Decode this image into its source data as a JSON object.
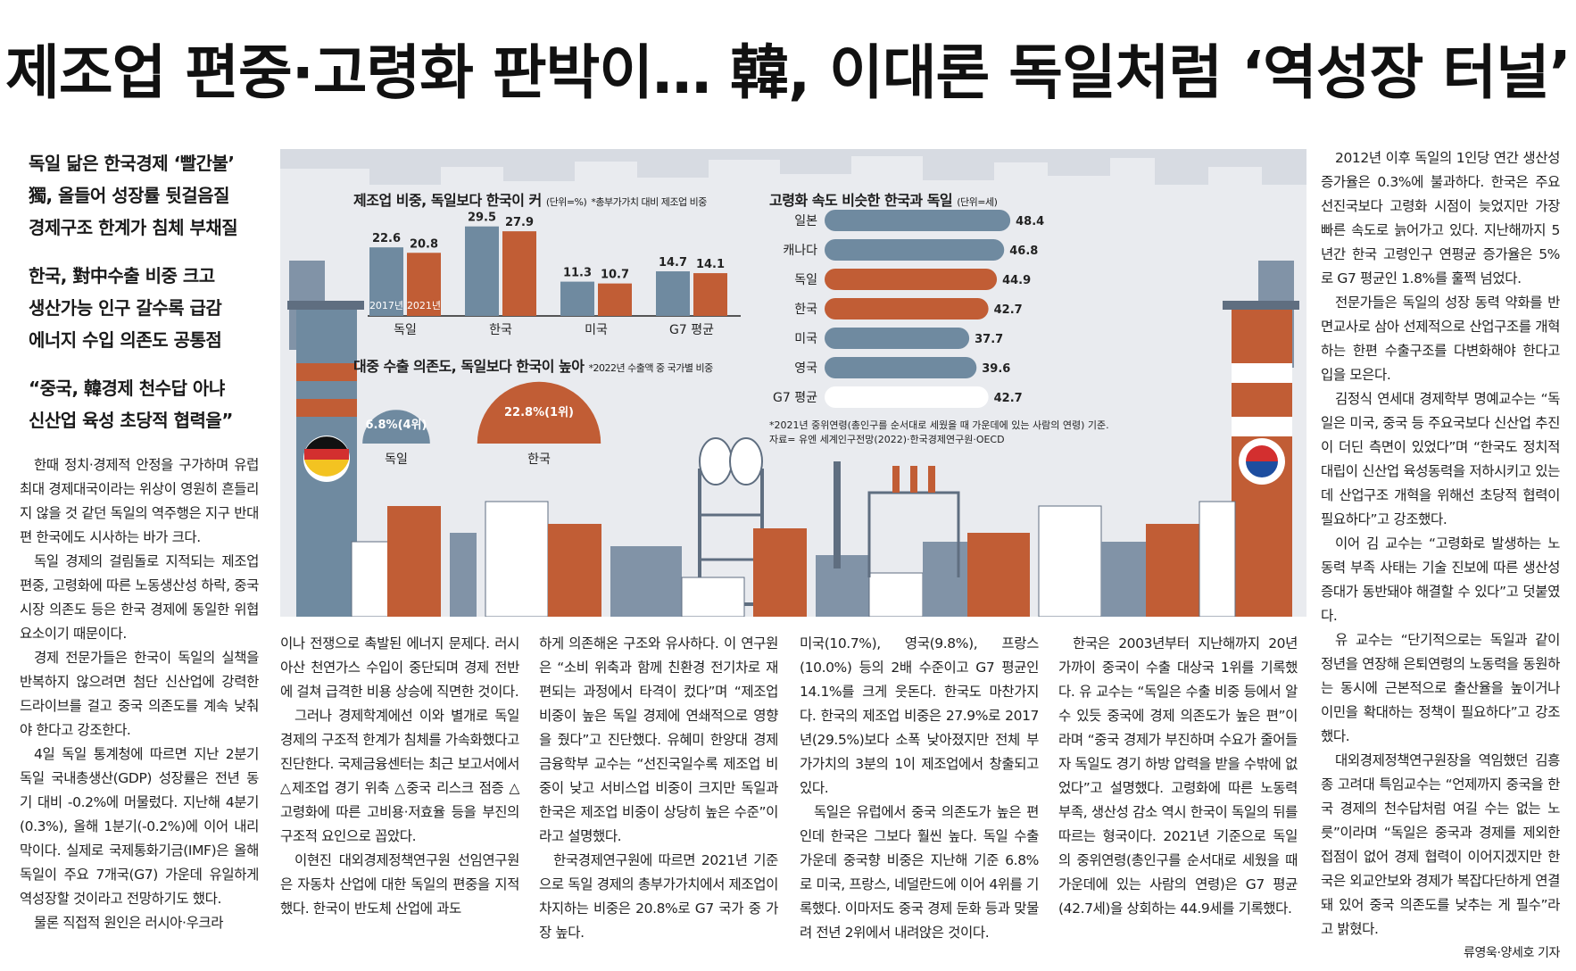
{
  "headline": "제조업 편중·고령화 판박이… 韓, 이대론 독일처럼 ‘역성장 터널’",
  "subheads": [
    [
      "독일 닮은 한국경제 ‘빨간불’",
      "獨, 올들어 성장률 뒷걸음질",
      "경제구조 한계가 침체 부채질"
    ],
    [
      "한국, 對中수출 비중 크고",
      "생산가능 인구 갈수록 급감",
      "에너지 수입 의존도 공통점"
    ],
    [
      "“중국, 韓경제 천수답 아냐",
      "신산업 육성 초당적 협력을”"
    ]
  ],
  "columns": {
    "c1": [
      "한때 정치·경제적 안정을 구가하며 유럽 최대 경제대국이라는 위상이 영원히 흔들리지 않을 것 같던 독일의 역주행은 지구 반대편 한국에도 시사하는 바가 크다.",
      "독일 경제의 걸림돌로 지적되는 제조업 편중, 고령화에 따른 노동생산성 하락, 중국 시장 의존도 등은 한국 경제에 동일한 위협 요소이기 때문이다.",
      "경제 전문가들은 한국이 독일의 실책을 반복하지 않으려면 첨단 신산업에 강력한 드라이브를 걸고 중국 의존도를 계속 낮춰야 한다고 강조한다.",
      "4일 독일 통계청에 따르면 지난 2분기 독일 국내총생산(GDP) 성장률은 전년 동기 대비 -0.2%에 머물렀다. 지난해 4분기(0.3%), 올해 1분기(-0.2%)에 이어 내리막이다. 실제로 국제통화기금(IMF)은 올해 독일이 주요 7개국(G7) 가운데 유일하게 역성장할 것이라고 전망하기도 했다.",
      "물론 직접적 원인은 러시아·우크라"
    ],
    "c2": [
      "이나 전쟁으로 촉발된 에너지 문제다. 러시아산 천연가스 수입이 중단되며 경제 전반에 걸쳐 급격한 비용 상승에 직면한 것이다.",
      "그러나 경제학계에선 이와 별개로 독일 경제의 구조적 한계가 침체를 가속화했다고 진단한다. 국제금융센터는 최근 보고서에서 △제조업 경기 위축 △중국 리스크 점증 △고령화에 따른 고비용·저효율 등을 부진의 구조적 요인으로 꼽았다.",
      "이현진 대외경제정책연구원 선임연구원은 자동차 산업에 대한 독일의 편중을 지적했다. 한국이 반도체 산업에 과도"
    ],
    "c3": [
      "하게 의존해온 구조와 유사하다. 이 연구원은 “소비 위축과 함께 친환경 전기차로 재편되는 과정에서 타격이 컸다”며 “제조업 비중이 높은 독일 경제에 연쇄적으로 영향을 줬다”고 진단했다. 유혜미 한양대 경제금융학부 교수는 “선진국일수록 제조업 비중이 낮고 서비스업 비중이 크지만 독일과 한국은 제조업 비중이 상당히 높은 수준”이라고 설명했다.",
      "한국경제연구원에 따르면 2021년 기준으로 독일 경제의 총부가가치에서 제조업이 차지하는 비중은 20.8%로 G7 국가 중 가장 높다."
    ],
    "c4": [
      "미국(10.7%), 영국(9.8%), 프랑스(10.0%) 등의 2배 수준이고 G7 평균인 14.1%를 크게 웃돈다. 한국도 마찬가지다. 한국의 제조업 비중은 27.9%로 2017년(29.5%)보다 소폭 낮아졌지만 전체 부가가치의 3분의 1이 제조업에서 창출되고 있다.",
      "독일은 유럽에서 중국 의존도가 높은 편인데 한국은 그보다 훨씬 높다. 독일 수출 가운데 중국향 비중은 지난해 기준 6.8%로 미국, 프랑스, 네덜란드에 이어 4위를 기록했다. 이마저도 중국 경제 둔화 등과 맞물려 전년 2위에서 내려앉은 것이다."
    ],
    "c5": [
      "한국은 2003년부터 지난해까지 20년 가까이 중국이 수출 대상국 1위를 기록했다. 유 교수는 “독일은 수출 비중 등에서 알 수 있듯 중국에 경제 의존도가 높은 편”이라며 “중국 경제가 부진하며 수요가 줄어들자 독일도 경기 하방 압력을 받을 수밖에 없었다”고 설명했다. 고령화에 따른 노동력 부족, 생산성 감소 역시 한국이 독일의 뒤를 따르는 형국이다. 2021년 기준으로 독일의 중위연령(총인구를 순서대로 세웠을 때 가운데에 있는 사람의 연령)은 G7 평균(42.7세)을 상회하는 44.9세를 기록했다."
    ],
    "c6": [
      "2012년 이후 독일의 1인당 연간 생산성 증가율은 0.3%에 불과하다. 한국은 주요 선진국보다 고령화 시점이 늦었지만 가장 빠른 속도로 늙어가고 있다. 지난해까지 5년간 한국 고령인구 연평균 증가율은 5%로 G7 평균인 1.8%를 훌쩍 넘었다.",
      "전문가들은 독일의 성장 동력 약화를 반면교사로 삼아 선제적으로 산업구조를 개혁하는 한편 수출구조를 다변화해야 한다고 입을 모은다.",
      "김정식 연세대 경제학부 명예교수는 “독일은 미국, 중국 등 주요국보다 신산업 추진이 더딘 측면이 있었다”며 “한국도 정치적 대립이 신산업 육성동력을 저하시키고 있는데 산업구조 개혁을 위해선 초당적 협력이 필요하다”고 강조했다.",
      "이어 김 교수는 “고령화로 발생하는 노동력 부족 사태는 기술 진보에 따른 생산성 증대가 동반돼야 해결할 수 있다”고 덧붙였다.",
      "유 교수는 “단기적으로는 독일과 같이 정년을 연장해 은퇴연령의 노동력을 동원하는 동시에 근본적으로 출산율을 높이거나 이민을 확대하는 정책이 필요하다”고 강조했다.",
      "대외경제정책연구원장을 역임했던 김흥종 고려대 특임교수는 “언제까지 중국을 한국 경제의 천수답처럼 여길 수는 없는 노릇”이라며 “독일은 중국과 경제를 제외한 접점이 없어 경제 협력이 이어지겠지만 한국은 외교안보와 경제가 복잡다단하게 연결돼 있어 중국 의존도를 낮추는 게 필수”라고 밝혔다."
    ],
    "byline": "류영욱·양세호 기자"
  },
  "chart_data": [
    {
      "type": "bar",
      "title": "제조업 비중, 독일보다 한국이 커",
      "unit": "(단위=%)",
      "subtitle": "*총부가가치 대비 제조업 비중",
      "categories": [
        "독일",
        "한국",
        "미국",
        "G7 평균"
      ],
      "series": [
        {
          "name": "2017년",
          "values": [
            22.6,
            29.5,
            11.3,
            14.7
          ],
          "color": "#6f8aa0"
        },
        {
          "name": "2021년",
          "values": [
            20.8,
            27.9,
            10.7,
            14.1
          ],
          "color": "#c15d35"
        }
      ],
      "value_labels": [
        [
          "22.6",
          "29.5",
          "11.3",
          "14.7"
        ],
        [
          "20.8",
          "27.9",
          "10.7",
          "14.1"
        ]
      ]
    },
    {
      "type": "pie",
      "title": "대중 수출 의존도, 독일보다 한국이 높아",
      "subtitle": "*2022년 수출액 중 국가별 비중",
      "categories": [
        "독일",
        "한국"
      ],
      "values": [
        6.8,
        22.8
      ],
      "labels": [
        "6.8%(4위)",
        "22.8%(1위)"
      ],
      "colors": [
        "#6f8aa0",
        "#c15d35"
      ]
    },
    {
      "type": "bar",
      "orientation": "horizontal",
      "title": "고령화 속도 비슷한 한국과 독일",
      "unit": "(단위=세)",
      "categories": [
        "일본",
        "캐나다",
        "독일",
        "한국",
        "미국",
        "영국",
        "G7 평균"
      ],
      "values": [
        48.4,
        46.8,
        44.9,
        42.7,
        37.7,
        39.6,
        42.7
      ],
      "value_labels": [
        "48.4",
        "46.8",
        "44.9",
        "42.7",
        "37.7",
        "39.6",
        "42.7"
      ],
      "colors": [
        "#6f8aa0",
        "#6f8aa0",
        "#c15d35",
        "#c15d35",
        "#6f8aa0",
        "#6f8aa0",
        "#ffffff"
      ],
      "note1": "*2021년 중위연령(총인구를 순서대로 세웠을 때 가운데에 있는 사람의 연령) 기준.",
      "note2": "자료= 유엔 세계인구전망(2022)·한국경제연구원·OECD"
    }
  ]
}
